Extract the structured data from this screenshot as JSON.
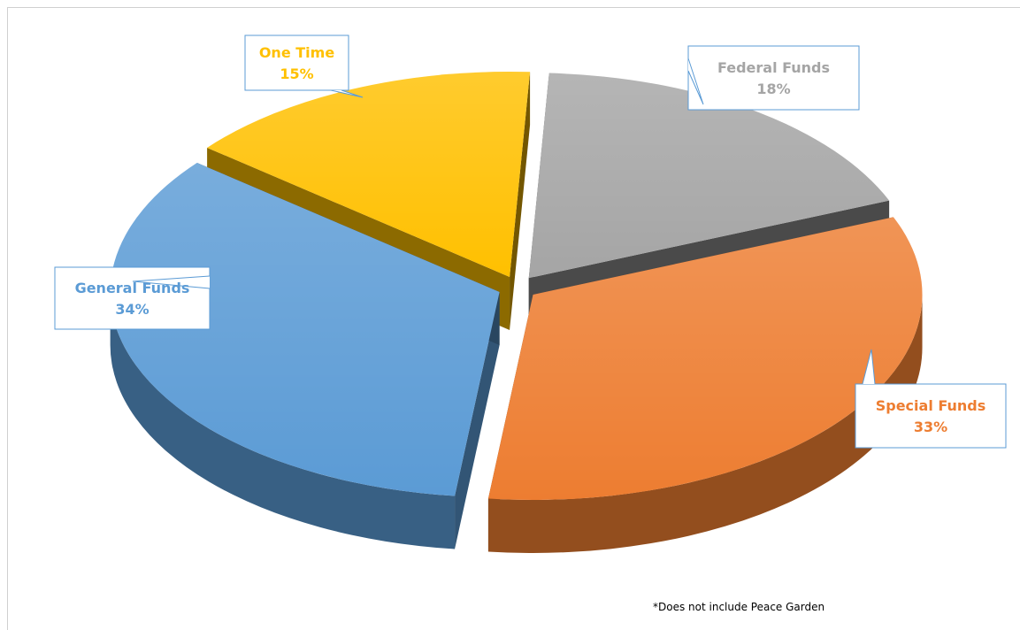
{
  "chart_data": {
    "type": "pie",
    "style": "3d-exploded",
    "title": "",
    "slices": [
      {
        "label": "One Time",
        "percent_label": "15%",
        "value": 15,
        "color": "#FFC000"
      },
      {
        "label": "Federal Funds",
        "percent_label": "18%",
        "value": 18,
        "color": "#A5A5A5"
      },
      {
        "label": "Special Funds",
        "percent_label": "33%",
        "value": 33,
        "color": "#ED7D31"
      },
      {
        "label": "General Funds",
        "percent_label": "34%",
        "value": 34,
        "color": "#5B9BD5"
      }
    ],
    "legend": "none",
    "footnote": "*Does not include Peace Garden"
  }
}
